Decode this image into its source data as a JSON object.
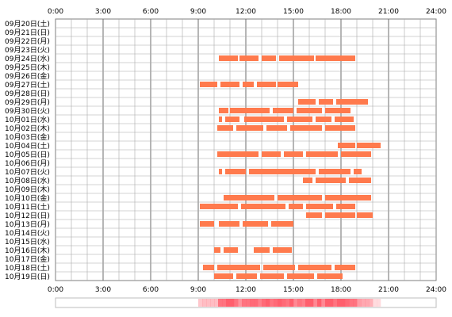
{
  "chart_data": {
    "type": "timeline",
    "x_unit": "hour",
    "xlim": [
      0,
      24
    ],
    "x_ticks": [
      "0:00",
      "3:00",
      "6:00",
      "9:00",
      "12:00",
      "15:00",
      "18:00",
      "21:00",
      "24:00"
    ],
    "grid": true,
    "bar_color": "#ff7a4d",
    "rows": [
      {
        "label": "09月20日(土)",
        "segments": []
      },
      {
        "label": "09月21日(日)",
        "segments": []
      },
      {
        "label": "09月22日(月)",
        "segments": []
      },
      {
        "label": "09月23日(火)",
        "segments": []
      },
      {
        "label": "09月24日(水)",
        "segments": [
          [
            10.3,
            11.5
          ],
          [
            11.6,
            12.8
          ],
          [
            13.0,
            13.9
          ],
          [
            14.1,
            16.3
          ],
          [
            16.4,
            18.9
          ]
        ]
      },
      {
        "label": "09月25日(木)",
        "segments": []
      },
      {
        "label": "09月26日(金)",
        "segments": []
      },
      {
        "label": "09月27日(土)",
        "segments": [
          [
            9.1,
            10.2
          ],
          [
            10.4,
            11.6
          ],
          [
            11.8,
            12.5
          ],
          [
            12.7,
            13.9
          ],
          [
            14.0,
            15.3
          ]
        ]
      },
      {
        "label": "09月28日(日)",
        "segments": []
      },
      {
        "label": "09月29日(月)",
        "segments": [
          [
            15.3,
            16.4
          ],
          [
            16.6,
            17.5
          ],
          [
            17.7,
            19.7
          ]
        ]
      },
      {
        "label": "09月30日(火)",
        "segments": [
          [
            10.3,
            10.9
          ],
          [
            11.0,
            13.5
          ],
          [
            13.7,
            15.0
          ],
          [
            15.2,
            16.8
          ],
          [
            17.0,
            18.6
          ]
        ]
      },
      {
        "label": "10月01日(水)",
        "segments": [
          [
            10.3,
            10.5
          ],
          [
            10.7,
            11.6
          ],
          [
            11.9,
            14.4
          ],
          [
            14.6,
            16.2
          ],
          [
            16.4,
            17.4
          ],
          [
            17.6,
            18.8
          ]
        ]
      },
      {
        "label": "10月02日(木)",
        "segments": [
          [
            10.2,
            11.2
          ],
          [
            11.4,
            13.1
          ],
          [
            13.3,
            14.6
          ],
          [
            14.8,
            16.8
          ],
          [
            17.0,
            18.9
          ]
        ]
      },
      {
        "label": "10月03日(金)",
        "segments": []
      },
      {
        "label": "10月04日(土)",
        "segments": [
          [
            17.8,
            18.9
          ],
          [
            19.0,
            20.5
          ]
        ]
      },
      {
        "label": "10月05日(日)",
        "segments": [
          [
            10.2,
            12.8
          ],
          [
            13.0,
            14.2
          ],
          [
            14.4,
            15.6
          ],
          [
            15.8,
            17.8
          ],
          [
            18.0,
            19.9
          ]
        ]
      },
      {
        "label": "10月06日(月)",
        "segments": []
      },
      {
        "label": "10月07日(火)",
        "segments": [
          [
            10.3,
            10.5
          ],
          [
            10.7,
            12.0
          ],
          [
            12.2,
            16.4
          ],
          [
            16.6,
            18.6
          ],
          [
            18.8,
            19.3
          ]
        ]
      },
      {
        "label": "10月08日(水)",
        "segments": [
          [
            15.6,
            16.2
          ],
          [
            16.4,
            18.3
          ],
          [
            18.5,
            19.9
          ]
        ]
      },
      {
        "label": "10月09日(木)",
        "segments": []
      },
      {
        "label": "10月10日(金)",
        "segments": [
          [
            10.6,
            13.8
          ],
          [
            14.0,
            16.8
          ],
          [
            17.0,
            19.9
          ]
        ]
      },
      {
        "label": "10月11日(土)",
        "segments": [
          [
            9.1,
            11.5
          ],
          [
            11.7,
            14.5
          ],
          [
            14.7,
            15.6
          ],
          [
            15.8,
            17.5
          ],
          [
            17.7,
            18.9
          ]
        ]
      },
      {
        "label": "10月12日(日)",
        "segments": [
          [
            15.8,
            16.8
          ],
          [
            17.0,
            18.9
          ],
          [
            19.0,
            20.0
          ]
        ]
      },
      {
        "label": "10月13日(月)",
        "segments": [
          [
            9.1,
            10.0
          ],
          [
            10.3,
            11.6
          ],
          [
            11.8,
            13.4
          ],
          [
            13.6,
            15.0
          ]
        ]
      },
      {
        "label": "10月14日(火)",
        "segments": []
      },
      {
        "label": "10月15日(水)",
        "segments": []
      },
      {
        "label": "10月16日(木)",
        "segments": [
          [
            10.0,
            10.4
          ],
          [
            10.6,
            11.5
          ],
          [
            12.5,
            13.5
          ],
          [
            13.7,
            14.9
          ]
        ]
      },
      {
        "label": "10月17日(金)",
        "segments": []
      },
      {
        "label": "10月18日(土)",
        "segments": [
          [
            9.3,
            10.0
          ],
          [
            10.2,
            12.9
          ],
          [
            13.1,
            15.1
          ],
          [
            15.3,
            17.4
          ],
          [
            17.6,
            18.9
          ]
        ]
      },
      {
        "label": "10月19日(日)",
        "segments": [
          [
            10.0,
            11.2
          ],
          [
            11.4,
            12.7
          ],
          [
            12.9,
            14.4
          ],
          [
            14.6,
            16.3
          ],
          [
            16.5,
            18.1
          ]
        ]
      }
    ]
  }
}
